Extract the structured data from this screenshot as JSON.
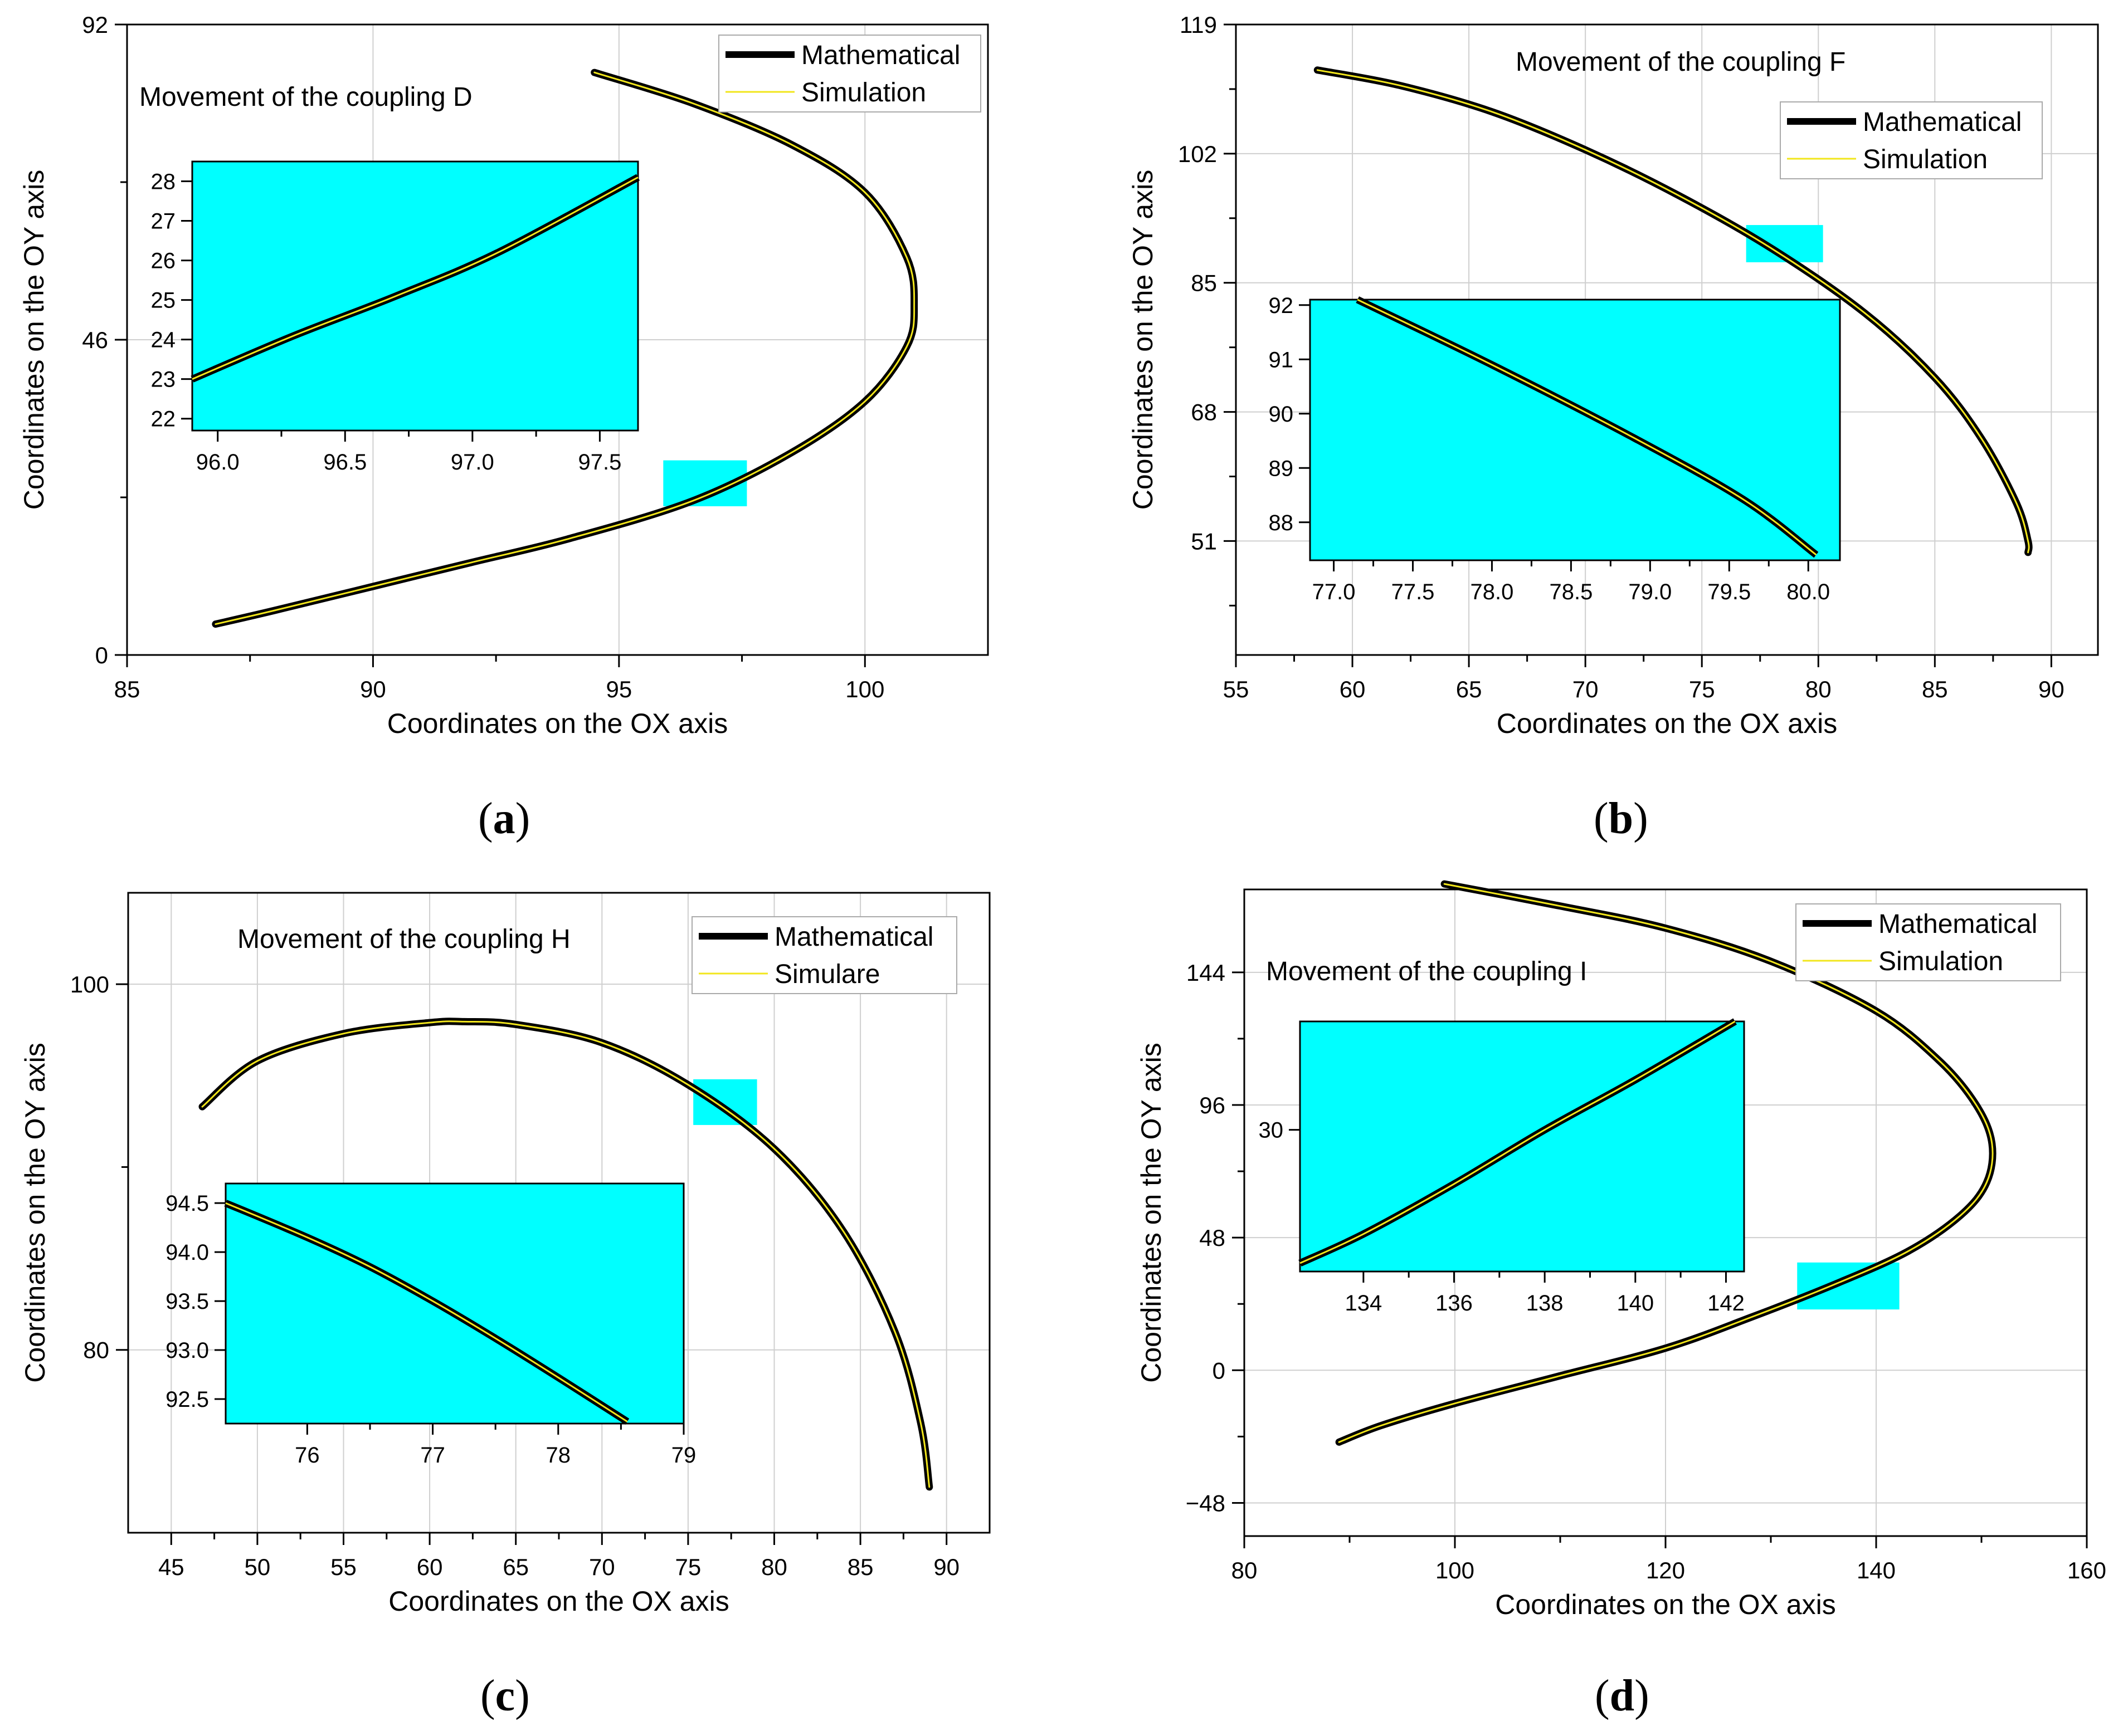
{
  "panel_labels": [
    "a",
    "b",
    "c",
    "d"
  ],
  "chart_data": [
    {
      "type": "line",
      "panel": "a",
      "title": "Movement of the coupling D",
      "xlabel": "Coordinates on the OX axis",
      "ylabel": "Coordinates on the OY axis",
      "xlim": [
        85,
        102.5
      ],
      "ylim": [
        0,
        92
      ],
      "xticks": [
        85,
        90,
        95,
        100
      ],
      "yticks": [
        0,
        46,
        92
      ],
      "grid": true,
      "legend": {
        "position": "top-right",
        "entries": [
          "Mathematical",
          "Simulation"
        ]
      },
      "series": [
        {
          "name": "Mathematical",
          "color": "#000000",
          "x": [
            94.5,
            96.5,
            98.5,
            100,
            100.85,
            101.0,
            100.85,
            100,
            98.5,
            96.5,
            94,
            92,
            90,
            88,
            86.8
          ],
          "y": [
            85.0,
            80.5,
            74.5,
            67.5,
            58,
            51,
            45,
            37,
            29.5,
            22.5,
            17,
            13.5,
            10,
            6.5,
            4.5
          ]
        },
        {
          "name": "Simulation",
          "color": "#f2e61c",
          "x": [
            94.5,
            96.5,
            98.5,
            100,
            100.85,
            101.0,
            100.85,
            100,
            98.5,
            96.5,
            94,
            92,
            90,
            88,
            86.8
          ],
          "y": [
            85.0,
            80.5,
            74.5,
            67.5,
            58,
            51,
            45,
            37,
            29.5,
            22.5,
            17,
            13.5,
            10,
            6.5,
            4.5
          ]
        }
      ],
      "zoom_region": {
        "x": [
          95.9,
          97.6
        ],
        "y": [
          21.7,
          28.4
        ]
      },
      "inset": {
        "xlim": [
          95.9,
          97.65
        ],
        "ylim": [
          21.7,
          28.5
        ],
        "xticks": [
          96.0,
          96.5,
          97.0,
          97.5
        ],
        "yticks": [
          22,
          23,
          24,
          25,
          26,
          27,
          28
        ],
        "x": [
          95.9,
          96.3,
          96.7,
          97.1,
          97.65
        ],
        "y": [
          23.0,
          24.1,
          25.1,
          26.2,
          28.1
        ]
      }
    },
    {
      "type": "line",
      "panel": "b",
      "title": "Movement of the coupling F",
      "xlabel": "Coordinates on the OX axis",
      "ylabel": "Coordinates on the OY axis",
      "xlim": [
        55,
        92
      ],
      "ylim": [
        36,
        119
      ],
      "xticks": [
        55,
        60,
        65,
        70,
        75,
        80,
        85,
        90
      ],
      "yticks": [
        51,
        68,
        85,
        102,
        119
      ],
      "grid": true,
      "legend": {
        "position": "top-right",
        "entries": [
          "Mathematical",
          "Simulation"
        ]
      },
      "series": [
        {
          "name": "Mathematical",
          "color": "#000000",
          "x": [
            58.5,
            62,
            66,
            70,
            74,
            78,
            82,
            85,
            87,
            88.5,
            89.0,
            89.0
          ],
          "y": [
            113,
            111,
            107.5,
            102.5,
            96.5,
            89.5,
            81,
            72.5,
            64.5,
            56,
            51,
            49.5
          ]
        },
        {
          "name": "Simulation",
          "color": "#f2e61c",
          "x": [
            58.5,
            62,
            66,
            70,
            74,
            78,
            82,
            85,
            87,
            88.5,
            89.0,
            89.0
          ],
          "y": [
            113,
            111,
            107.5,
            102.5,
            96.5,
            89.5,
            81,
            72.5,
            64.5,
            56,
            51,
            49.5
          ]
        }
      ],
      "zoom_region": {
        "x": [
          76.9,
          80.2
        ],
        "y": [
          87.7,
          92.6
        ]
      },
      "inset": {
        "xlim": [
          76.85,
          80.2
        ],
        "ylim": [
          87.3,
          92.1
        ],
        "xticks": [
          77.0,
          77.5,
          78.0,
          78.5,
          79.0,
          79.5,
          80.0
        ],
        "yticks": [
          88,
          89,
          90,
          91,
          92
        ],
        "x": [
          77.15,
          78.0,
          78.9,
          79.6,
          80.05
        ],
        "y": [
          92.1,
          90.9,
          89.55,
          88.4,
          87.4
        ]
      }
    },
    {
      "type": "line",
      "panel": "c",
      "title": "Movement of the coupling H",
      "xlabel": "Coordinates on the OX axis",
      "ylabel": "Coordinates on the OY axis",
      "xlim": [
        42.5,
        92.5
      ],
      "ylim": [
        70,
        105
      ],
      "xticks": [
        45,
        50,
        55,
        60,
        65,
        70,
        75,
        80,
        85,
        90
      ],
      "yticks": [
        80,
        100
      ],
      "grid": true,
      "legend": {
        "position": "top-right",
        "entries": [
          "Mathematical",
          "Simulare"
        ]
      },
      "series": [
        {
          "name": "Mathematical",
          "color": "#000000",
          "x": [
            46.8,
            50,
            55,
            60,
            62,
            65,
            70,
            75,
            80,
            84,
            87,
            88.5,
            89.0
          ],
          "y": [
            93.3,
            95.8,
            97.3,
            97.9,
            97.95,
            97.8,
            96.8,
            94.5,
            91,
            86.5,
            81,
            76,
            72.5
          ]
        },
        {
          "name": "Simulare",
          "color": "#f2e61c",
          "x": [
            46.8,
            50,
            55,
            60,
            62,
            65,
            70,
            75,
            80,
            84,
            87,
            88.5,
            89.0
          ],
          "y": [
            93.3,
            95.8,
            97.3,
            97.9,
            97.95,
            97.8,
            96.8,
            94.5,
            91,
            86.5,
            81,
            76,
            72.5
          ]
        }
      ],
      "zoom_region": {
        "x": [
          75.3,
          79.0
        ],
        "y": [
          92.3,
          94.8
        ]
      },
      "inset": {
        "xlim": [
          75.35,
          79.0
        ],
        "ylim": [
          92.25,
          94.7
        ],
        "xticks": [
          76,
          77,
          78,
          79
        ],
        "yticks": [
          92.5,
          93.0,
          93.5,
          94.0,
          94.5
        ],
        "x": [
          75.35,
          76.0,
          76.5,
          77.0,
          77.5,
          78.0,
          78.55
        ],
        "y": [
          94.5,
          94.15,
          93.85,
          93.5,
          93.12,
          92.72,
          92.27
        ]
      }
    },
    {
      "type": "line",
      "panel": "d",
      "title": "Movement of the coupling I",
      "xlabel": "Coordinates on the OX axis",
      "ylabel": "Coordinates on the OY axis",
      "xlim": [
        80,
        160
      ],
      "ylim": [
        -60,
        174
      ],
      "xticks": [
        80,
        100,
        120,
        140,
        160
      ],
      "yticks": [
        -48,
        0,
        48,
        96,
        144
      ],
      "grid": true,
      "legend": {
        "position": "top-right",
        "entries": [
          "Mathematical",
          "Simulation"
        ]
      },
      "series": [
        {
          "name": "Mathematical",
          "color": "#000000",
          "x": [
            99,
            110,
            120,
            130,
            140,
            146,
            149.5,
            151,
            150.5,
            148,
            143,
            136,
            128,
            120,
            110,
            100,
            93,
            89
          ],
          "y": [
            176,
            168,
            160,
            148,
            130,
            112,
            96,
            82,
            68,
            56,
            43,
            31,
            19,
            8,
            -2,
            -12,
            -20,
            -26
          ]
        },
        {
          "name": "Simulation",
          "color": "#f2e61c",
          "x": [
            99,
            110,
            120,
            130,
            140,
            146,
            149.5,
            151,
            150.5,
            148,
            143,
            136,
            128,
            120,
            110,
            100,
            93,
            89
          ],
          "y": [
            176,
            168,
            160,
            148,
            130,
            112,
            96,
            82,
            68,
            56,
            43,
            31,
            19,
            8,
            -2,
            -12,
            -20,
            -26
          ]
        }
      ],
      "zoom_region": {
        "x": [
          132.5,
          142.2
        ],
        "y": [
          22,
          39
        ]
      },
      "inset": {
        "xlim": [
          132.6,
          142.4
        ],
        "ylim": [
          23.2,
          35.2
        ],
        "xticks": [
          134,
          136,
          138,
          140,
          142
        ],
        "yticks": [
          30
        ],
        "x": [
          132.6,
          134,
          136,
          138,
          140,
          142.2
        ],
        "y": [
          23.6,
          25.0,
          27.4,
          30.0,
          32.4,
          35.2
        ]
      }
    }
  ]
}
